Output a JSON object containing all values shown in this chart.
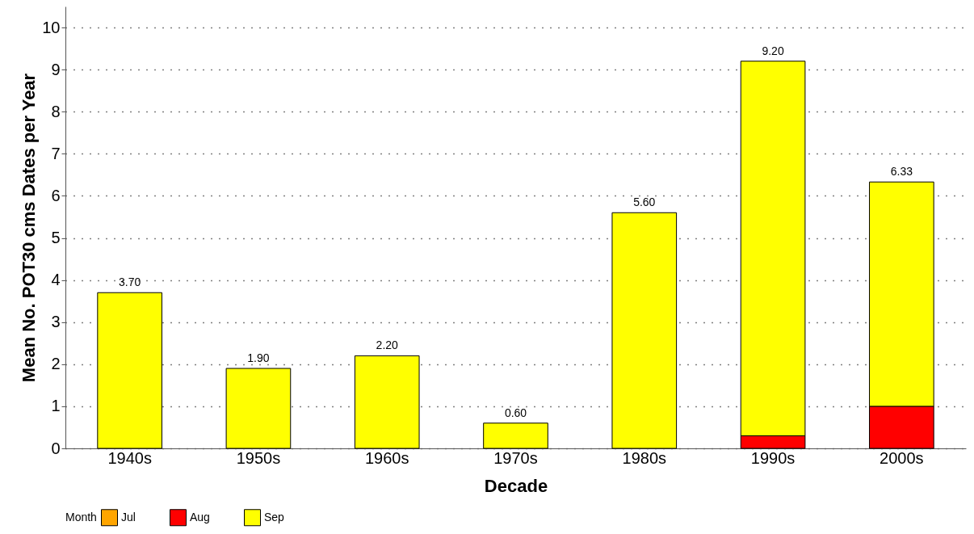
{
  "chart_data": {
    "type": "bar",
    "stacked": true,
    "xlabel": "Decade",
    "ylabel": "Mean No. POT30 cms Dates per Year",
    "legend_title": "Month",
    "categories": [
      "1940s",
      "1950s",
      "1960s",
      "1970s",
      "1980s",
      "1990s",
      "2000s"
    ],
    "series": [
      {
        "name": "Jul",
        "color": "#ffa500",
        "values": [
          null,
          null,
          null,
          null,
          null,
          null,
          null
        ]
      },
      {
        "name": "Aug",
        "color": "#ff0000",
        "values": [
          null,
          null,
          null,
          null,
          null,
          0.3,
          1.0
        ]
      },
      {
        "name": "Sep",
        "color": "#ffff00",
        "values": [
          3.7,
          1.9,
          2.2,
          0.6,
          5.6,
          8.9,
          5.33
        ]
      }
    ],
    "totals": [
      "3.70",
      "1.90",
      "2.20",
      "0.60",
      "5.60",
      "9.20",
      "6.33"
    ],
    "ylim": [
      0,
      10.5
    ],
    "yticks": [
      0,
      1,
      2,
      3,
      4,
      5,
      6,
      7,
      8,
      9,
      10
    ],
    "grid": "y",
    "legend": "bottom"
  }
}
